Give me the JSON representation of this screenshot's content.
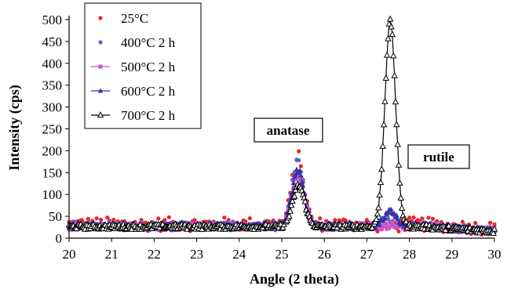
{
  "chart_data": {
    "type": "scatter",
    "xlabel": "Angle (2 theta)",
    "ylabel": "Intensity (cps)",
    "xlim": [
      20,
      30
    ],
    "ylim": [
      0,
      500
    ],
    "xticks": [
      20,
      21,
      22,
      23,
      24,
      25,
      26,
      27,
      28,
      29,
      30
    ],
    "yticks": [
      0,
      50,
      100,
      150,
      200,
      250,
      300,
      350,
      400,
      450,
      500
    ],
    "grid": false,
    "legend_position": "top-left",
    "annotations": [
      {
        "text": "anatase",
        "x": 25.4,
        "y": 225
      },
      {
        "text": "rutile",
        "x": 28.2,
        "y": 170
      }
    ],
    "series": [
      {
        "name": "25°C",
        "color": "#e8262b",
        "marker": "dot",
        "peaks": [
          {
            "x": 25.38,
            "y": 185,
            "w": 0.2
          },
          {
            "x": 27.5,
            "y": 28,
            "w": 0.3
          }
        ],
        "base": 32,
        "noise": 16
      },
      {
        "name": "400°C 2 h",
        "color": "#5b5fc7",
        "marker": "dot",
        "peaks": [
          {
            "x": 25.38,
            "y": 175,
            "w": 0.2
          },
          {
            "x": 27.55,
            "y": 45,
            "w": 0.3
          }
        ],
        "base": 28,
        "noise": 10
      },
      {
        "name": "500°C 2 h",
        "color": "#cc55cc",
        "marker": "square",
        "peaks": [
          {
            "x": 25.38,
            "y": 145,
            "w": 0.2
          },
          {
            "x": 27.55,
            "y": 28,
            "w": 0.3
          }
        ],
        "base": 27,
        "noise": 8
      },
      {
        "name": "600°C 2 h",
        "color": "#3333aa",
        "marker": "triangle-filled",
        "peaks": [
          {
            "x": 25.38,
            "y": 155,
            "w": 0.2
          },
          {
            "x": 27.55,
            "y": 60,
            "w": 0.22
          }
        ],
        "base": 27,
        "noise": 7
      },
      {
        "name": "700°C 2 h",
        "color": "#000000",
        "marker": "triangle-open",
        "peaks": [
          {
            "x": 25.4,
            "y": 120,
            "w": 0.2
          },
          {
            "x": 27.55,
            "y": 495,
            "w": 0.18
          }
        ],
        "base": 26,
        "noise": 6
      }
    ]
  }
}
